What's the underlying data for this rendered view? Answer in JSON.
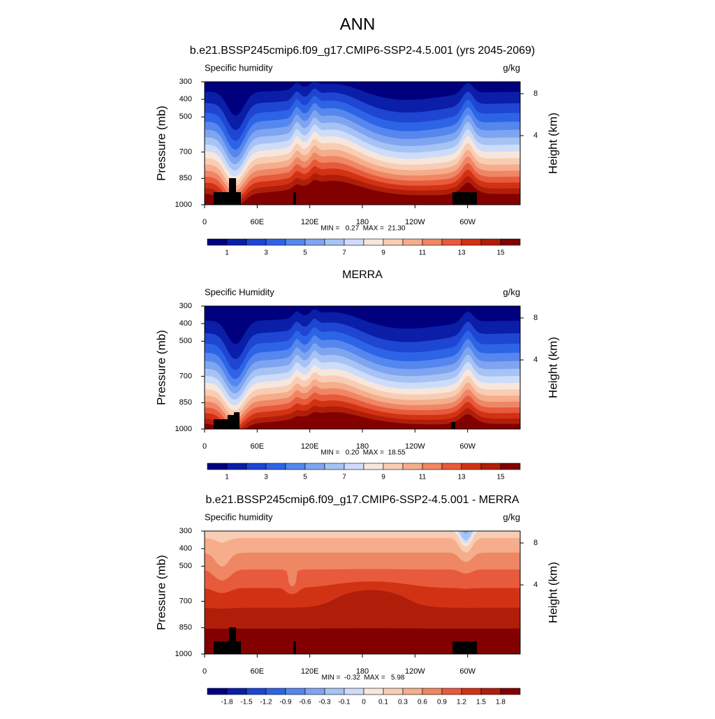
{
  "title": "ANN",
  "chart_data": [
    {
      "type": "contour",
      "title": "b.e21.BSSP245cmip6.f09_g17.CMIP6-SSP2-4.5.001 (yrs 2045-2069)",
      "left_label": "Specific humidity",
      "right_label": "g/kg",
      "ylabel": "Pressure (mb)",
      "y2label": "Height (km)",
      "xlim": [
        0,
        360
      ],
      "xticks": [
        0,
        {
          "value": 60,
          "label": "60E"
        },
        {
          "value": 120,
          "label": "120E"
        },
        180,
        {
          "value": 240,
          "label": "120W"
        },
        {
          "value": 300,
          "label": "60W"
        }
      ],
      "ylim": [
        1000,
        300
      ],
      "yticks": [
        300,
        400,
        500,
        700,
        850,
        1000
      ],
      "y2ticks": [
        8,
        4
      ],
      "annotation": "MIN =   0.27  MAX =  21.30",
      "colorbar": {
        "colors": [
          "#00007f",
          "#0a1ea8",
          "#1e46d2",
          "#2d64e6",
          "#5587ee",
          "#7fa5f0",
          "#a7c3f5",
          "#cddcf9",
          "#f7e6dc",
          "#f8cdb4",
          "#f5ad8c",
          "#ef8664",
          "#e85a3c",
          "#d23214",
          "#b01e0a",
          "#820000"
        ],
        "levels": [
          1,
          2,
          3,
          4,
          5,
          6,
          7,
          8,
          9,
          10,
          11,
          12,
          13,
          14,
          15
        ],
        "ticks": [
          1,
          3,
          5,
          7,
          9,
          11,
          13,
          15
        ]
      }
    },
    {
      "type": "contour",
      "title": "MERRA",
      "left_label": "Specific Humidity",
      "right_label": "g/kg",
      "ylabel": "Pressure (mb)",
      "y2label": "Height (km)",
      "xlim": [
        0,
        360
      ],
      "xticks": [
        0,
        {
          "value": 60,
          "label": "60E"
        },
        {
          "value": 120,
          "label": "120E"
        },
        180,
        {
          "value": 240,
          "label": "120W"
        },
        {
          "value": 300,
          "label": "60W"
        }
      ],
      "ylim": [
        1000,
        300
      ],
      "yticks": [
        300,
        400,
        500,
        700,
        850,
        1000
      ],
      "y2ticks": [
        8,
        4
      ],
      "annotation": "MIN =   0.20  MAX =  18.55",
      "colorbar": {
        "colors": [
          "#00007f",
          "#0a1ea8",
          "#1e46d2",
          "#2d64e6",
          "#5587ee",
          "#7fa5f0",
          "#a7c3f5",
          "#cddcf9",
          "#f7e6dc",
          "#f8cdb4",
          "#f5ad8c",
          "#ef8664",
          "#e85a3c",
          "#d23214",
          "#b01e0a",
          "#820000"
        ],
        "levels": [
          1,
          2,
          3,
          4,
          5,
          6,
          7,
          8,
          9,
          10,
          11,
          12,
          13,
          14,
          15
        ],
        "ticks": [
          1,
          3,
          5,
          7,
          9,
          11,
          13,
          15
        ]
      }
    },
    {
      "type": "contour-diff",
      "title": "b.e21.BSSP245cmip6.f09_g17.CMIP6-SSP2-4.5.001 - MERRA",
      "left_label": "Specific humidity",
      "right_label": "g/kg",
      "ylabel": "Pressure (mb)",
      "y2label": "Height (km)",
      "xlim": [
        0,
        360
      ],
      "xticks": [
        0,
        {
          "value": 60,
          "label": "60E"
        },
        {
          "value": 120,
          "label": "120E"
        },
        180,
        {
          "value": 240,
          "label": "120W"
        },
        {
          "value": 300,
          "label": "60W"
        }
      ],
      "ylim": [
        1000,
        300
      ],
      "yticks": [
        300,
        400,
        500,
        700,
        850,
        1000
      ],
      "y2ticks": [
        8,
        4
      ],
      "annotation": "MIN =  -0.32  MAX =   5.98",
      "colorbar": {
        "colors": [
          "#00007f",
          "#0a1ea8",
          "#1e46d2",
          "#2d64e6",
          "#5587ee",
          "#7fa5f0",
          "#a7c3f5",
          "#cddcf9",
          "#f7e6dc",
          "#f8cdb4",
          "#f5ad8c",
          "#ef8664",
          "#e85a3c",
          "#d23214",
          "#b01e0a",
          "#820000"
        ],
        "levels": [
          -1.8,
          -1.5,
          -1.2,
          -0.9,
          -0.6,
          -0.3,
          -0.1,
          0,
          0.1,
          0.3,
          0.6,
          0.9,
          1.2,
          1.5,
          1.8
        ],
        "ticks": [
          -1.8,
          -1.5,
          -1.2,
          -0.9,
          -0.6,
          -0.3,
          -0.1,
          0,
          0.1,
          0.3,
          0.6,
          0.9,
          1.2,
          1.5,
          1.8
        ]
      }
    }
  ]
}
